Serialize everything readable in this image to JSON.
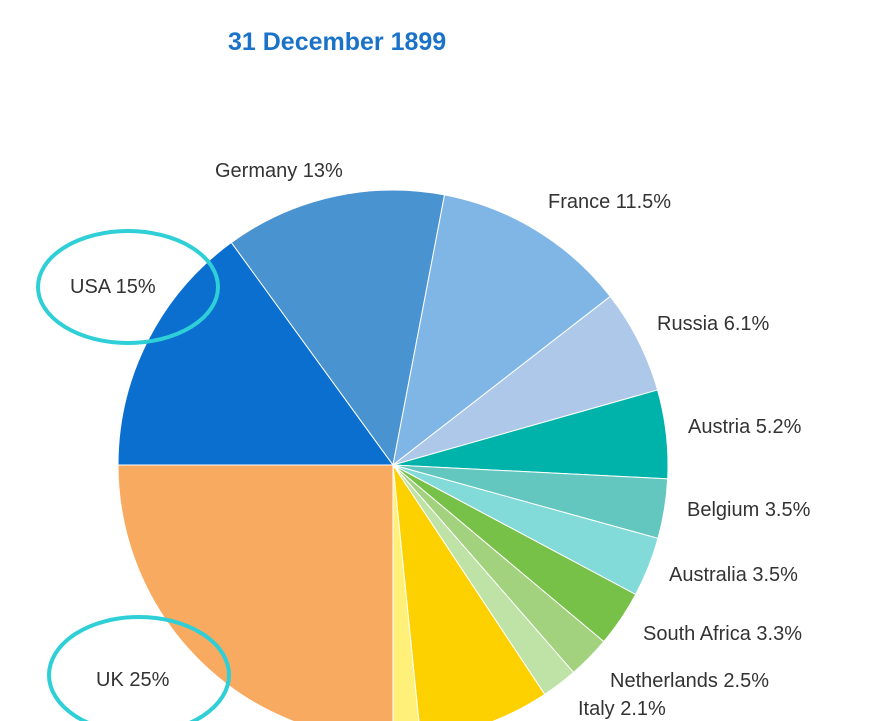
{
  "chart_data": {
    "type": "pie",
    "title": "31 December 1899",
    "slices": [
      {
        "label": "USA 15%",
        "name": "USA",
        "value": 15,
        "color": "#0b6fd0"
      },
      {
        "label": "Germany 13%",
        "name": "Germany",
        "value": 13,
        "color": "#4a93d1"
      },
      {
        "label": "France 11.5%",
        "name": "France",
        "value": 11.5,
        "color": "#80b6e6"
      },
      {
        "label": "Russia 6.1%",
        "name": "Russia",
        "value": 6.1,
        "color": "#aec8ea"
      },
      {
        "label": "Austria 5.2%",
        "name": "Austria",
        "value": 5.2,
        "color": "#00b3aa"
      },
      {
        "label": "Belgium 3.5%",
        "name": "Belgium",
        "value": 3.5,
        "color": "#63c7c0"
      },
      {
        "label": "Australia 3.5%",
        "name": "Australia",
        "value": 3.5,
        "color": "#82dbd9"
      },
      {
        "label": "South Africa 3.3%",
        "name": "South Africa",
        "value": 3.3,
        "color": "#77c148"
      },
      {
        "label": "Netherlands 2.5%",
        "name": "Netherlands",
        "value": 2.5,
        "color": "#a3d27e"
      },
      {
        "label": "Italy 2.1%",
        "name": "Italy",
        "value": 2.1,
        "color": "#bfe2a6"
      },
      {
        "label": "",
        "name": "",
        "value": 7.7,
        "color": "#fdd000"
      },
      {
        "label": "",
        "name": "",
        "value": 1.6,
        "color": "#fff07a"
      },
      {
        "label": "UK 25%",
        "name": "UK",
        "value": 25,
        "color": "#f8aa60"
      }
    ],
    "highlighted": [
      "USA 15%",
      "UK 25%"
    ],
    "highlight_color": "#2ecfd6"
  }
}
